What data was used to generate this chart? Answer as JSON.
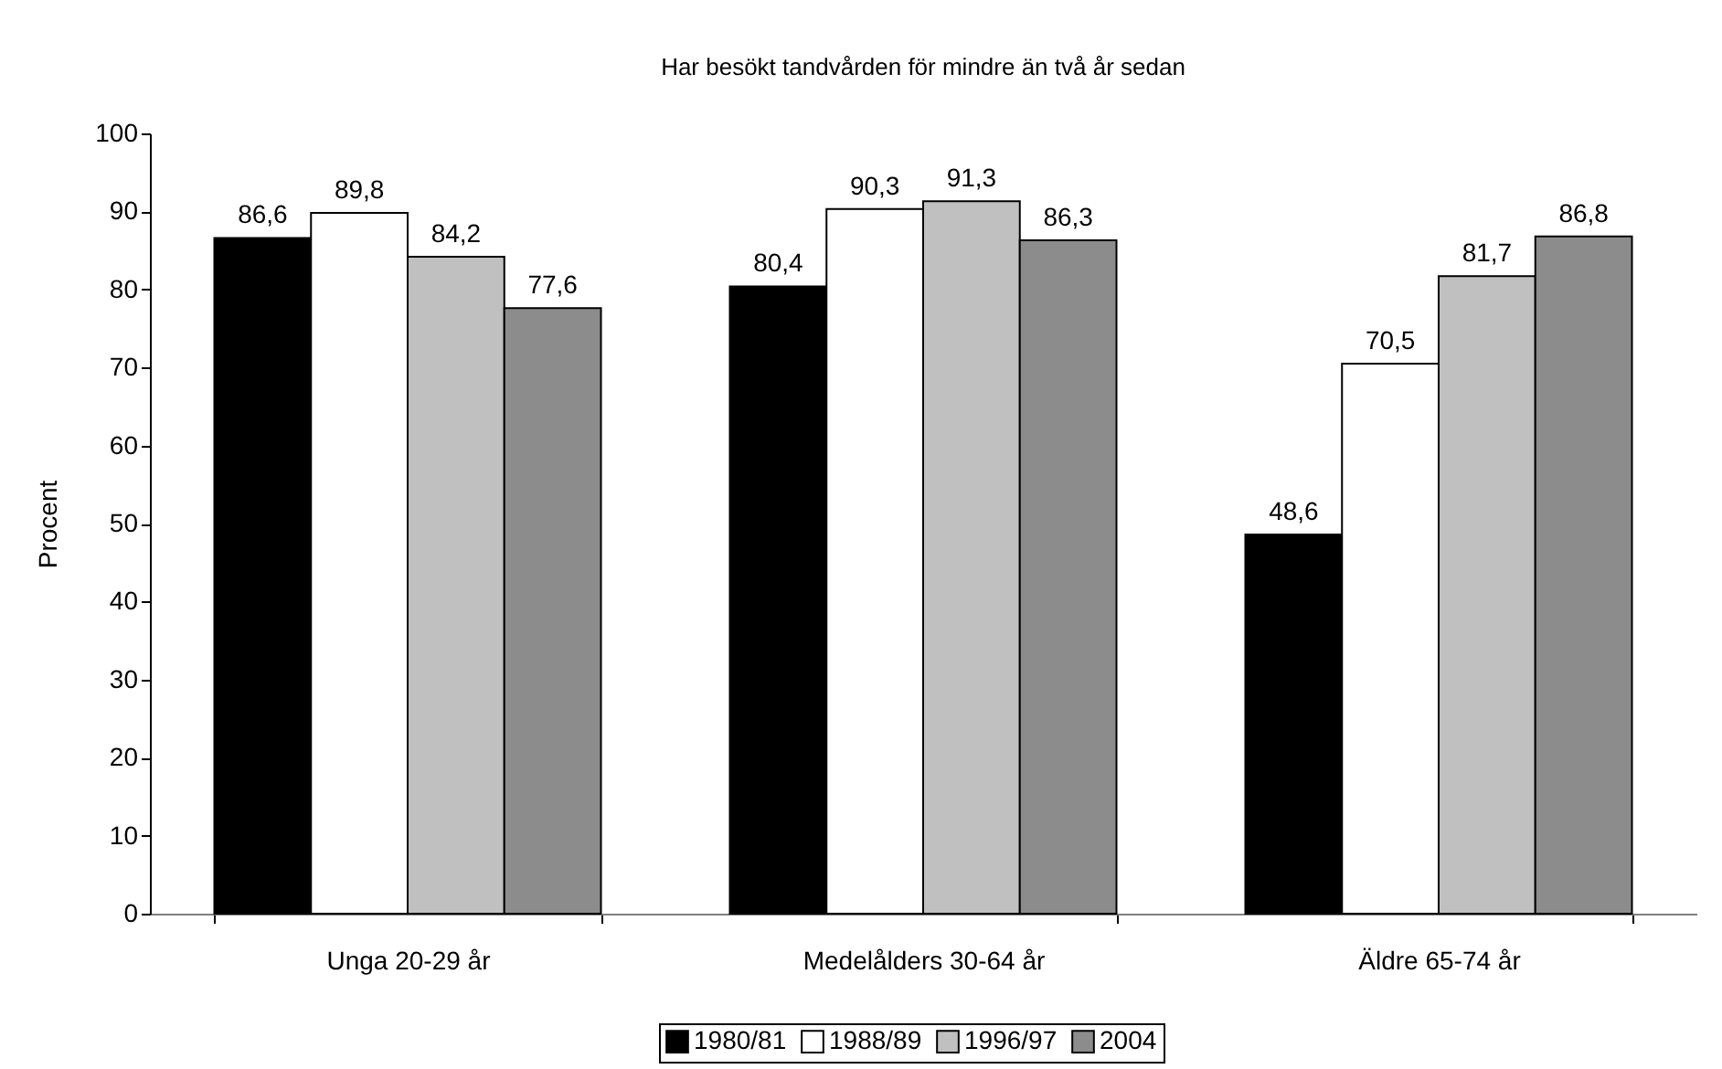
{
  "chart_data": {
    "type": "bar",
    "title": "Har besökt tandvården för mindre än två år sedan",
    "ylabel": "Procent",
    "categories": [
      "Unga 20-29 år",
      "Medelålders 30-64 år",
      "Äldre 65-74 år"
    ],
    "series": [
      {
        "name": "1980/81",
        "color": "#000000",
        "values": [
          86.6,
          80.4,
          48.6
        ],
        "value_labels": [
          "86,6",
          "80,4",
          "48,6"
        ]
      },
      {
        "name": "1988/89",
        "color": "#ffffff",
        "values": [
          89.8,
          90.3,
          70.5
        ],
        "value_labels": [
          "89,8",
          "90,3",
          "70,5"
        ]
      },
      {
        "name": "1996/97",
        "color": "#c0c0c0",
        "values": [
          84.2,
          91.3,
          81.7
        ],
        "value_labels": [
          "84,2",
          "91,3",
          "81,7"
        ]
      },
      {
        "name": "2004",
        "color": "#8c8c8c",
        "values": [
          77.6,
          86.3,
          86.8
        ],
        "value_labels": [
          "77,6",
          "86,3",
          "86,8"
        ]
      }
    ],
    "ylim": [
      0,
      100
    ],
    "yticks": [
      0,
      10,
      20,
      30,
      40,
      50,
      60,
      70,
      80,
      90,
      100
    ],
    "grid": false,
    "legend": "bottom"
  }
}
